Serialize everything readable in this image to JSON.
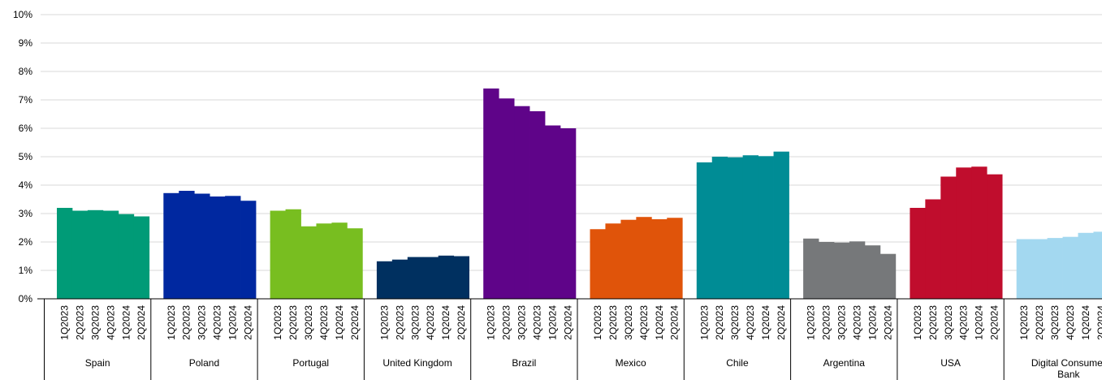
{
  "chart_data": {
    "type": "bar",
    "title": "",
    "xlabel": "",
    "ylabel": "",
    "ylim": [
      0,
      10
    ],
    "ytick_labels": [
      "0%",
      "1%",
      "2%",
      "3%",
      "4%",
      "5%",
      "6%",
      "7%",
      "8%",
      "9%",
      "10%"
    ],
    "grid": "horizontal",
    "legend": "none",
    "periods": [
      "1Q2023",
      "2Q2023",
      "3Q2023",
      "4Q2023",
      "1Q2024",
      "2Q2024"
    ],
    "groups": [
      {
        "name": "Spain",
        "color": "#009B77",
        "values": [
          3.2,
          3.1,
          3.12,
          3.1,
          2.98,
          2.9
        ]
      },
      {
        "name": "Poland",
        "color": "#0028A0",
        "values": [
          3.72,
          3.8,
          3.7,
          3.6,
          3.62,
          3.45
        ]
      },
      {
        "name": "Portugal",
        "color": "#78BE20",
        "values": [
          3.1,
          3.15,
          2.55,
          2.65,
          2.68,
          2.48
        ]
      },
      {
        "name": "United Kingdom",
        "color": "#003060",
        "values": [
          1.32,
          1.38,
          1.47,
          1.47,
          1.52,
          1.5
        ]
      },
      {
        "name": "Brazil",
        "color": "#5F0489",
        "values": [
          7.4,
          7.05,
          6.78,
          6.6,
          6.1,
          6.0
        ]
      },
      {
        "name": "Mexico",
        "color": "#E0540A",
        "values": [
          2.45,
          2.65,
          2.78,
          2.88,
          2.8,
          2.85
        ]
      },
      {
        "name": "Chile",
        "color": "#008C95",
        "values": [
          4.8,
          5.0,
          4.98,
          5.05,
          5.02,
          5.18
        ]
      },
      {
        "name": "Argentina",
        "color": "#76787A",
        "values": [
          2.12,
          2.0,
          1.98,
          2.02,
          1.88,
          1.58
        ]
      },
      {
        "name": "USA",
        "color": "#C00D2D",
        "values": [
          3.2,
          3.5,
          4.3,
          4.62,
          4.65,
          4.38
        ]
      },
      {
        "name": "Digital Consumer Bank",
        "color": "#A3D8F0",
        "values": [
          2.1,
          2.1,
          2.14,
          2.18,
          2.32,
          2.36
        ]
      }
    ]
  }
}
